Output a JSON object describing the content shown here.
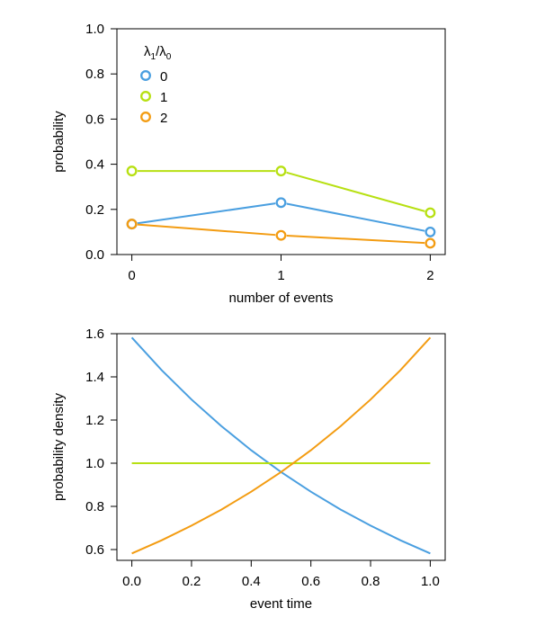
{
  "chart_data": [
    {
      "type": "line",
      "markers": "open-circle",
      "xlabel": "number of events",
      "ylabel": "probability",
      "x": [
        0,
        1,
        2
      ],
      "xticks": [
        "0",
        "1",
        "2"
      ],
      "yticks": [
        "0.0",
        "0.2",
        "0.4",
        "0.6",
        "0.8",
        "1.0"
      ],
      "xlim": [
        -0.1,
        2.1
      ],
      "ylim": [
        0,
        1.0
      ],
      "legend": {
        "title_symbol": "λ",
        "title_num_sub": "1",
        "title_den_sub": "0",
        "placement": "top-left"
      },
      "series": [
        {
          "name": "0",
          "color": "#4a9fe0",
          "values": [
            0.135,
            0.23,
            0.1
          ]
        },
        {
          "name": "1",
          "color": "#b7e012",
          "values": [
            0.37,
            0.37,
            0.185
          ]
        },
        {
          "name": "2",
          "color": "#f39c12",
          "values": [
            0.135,
            0.085,
            0.05
          ]
        }
      ]
    },
    {
      "type": "line",
      "xlabel": "event time",
      "ylabel": "probability density",
      "xticks": [
        "0.0",
        "0.2",
        "0.4",
        "0.6",
        "0.8",
        "1.0"
      ],
      "yticks": [
        "0.6",
        "0.8",
        "1.0",
        "1.2",
        "1.4",
        "1.6"
      ],
      "xlim": [
        -0.05,
        1.05
      ],
      "ylim": [
        0.55,
        1.6
      ],
      "series": [
        {
          "color": "#4a9fe0",
          "x": [
            0,
            0.1,
            0.2,
            0.3,
            0.4,
            0.5,
            0.6,
            0.7,
            0.8,
            0.9,
            1.0
          ],
          "values": [
            1.582,
            1.431,
            1.295,
            1.172,
            1.06,
            0.959,
            0.868,
            0.785,
            0.711,
            0.643,
            0.582
          ]
        },
        {
          "color": "#b7e012",
          "x": [
            0,
            1.0
          ],
          "values": [
            1.0,
            1.0
          ]
        },
        {
          "color": "#f39c12",
          "x": [
            0,
            0.1,
            0.2,
            0.3,
            0.4,
            0.5,
            0.6,
            0.7,
            0.8,
            0.9,
            1.0
          ],
          "values": [
            0.582,
            0.643,
            0.711,
            0.785,
            0.868,
            0.959,
            1.06,
            1.172,
            1.295,
            1.431,
            1.582
          ]
        }
      ]
    }
  ]
}
